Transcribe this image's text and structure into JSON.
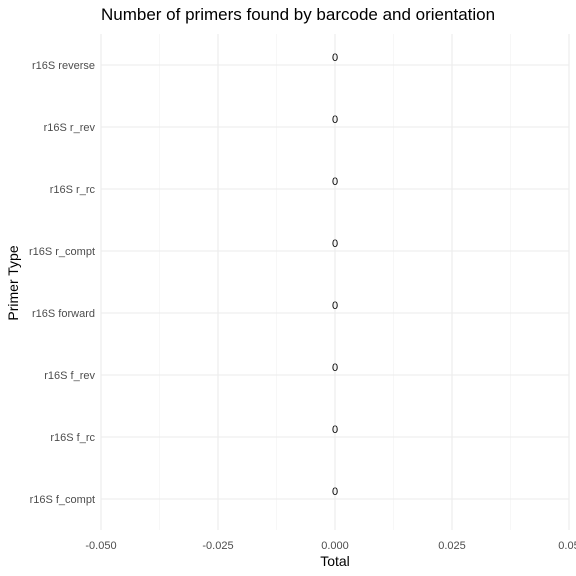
{
  "chart_data": {
    "type": "bar",
    "orientation": "horizontal",
    "title": "Number of primers found by barcode and orientation",
    "xlabel": "Total",
    "ylabel": "Primer Type",
    "categories": [
      "r16S reverse",
      "r16S r_rev",
      "r16S r_rc",
      "r16S r_compt",
      "r16S forward",
      "r16S f_rev",
      "r16S f_rc",
      "r16S f_compt"
    ],
    "values": [
      0,
      0,
      0,
      0,
      0,
      0,
      0,
      0
    ],
    "data_labels": [
      "0",
      "0",
      "0",
      "0",
      "0",
      "0",
      "0",
      "0"
    ],
    "xlim": [
      -0.05,
      0.05
    ],
    "x_ticks": [
      -0.05,
      -0.025,
      0,
      0.025,
      0.05
    ],
    "x_tick_labels": [
      "-0.050",
      "-0.025",
      "0.000",
      "0.025",
      "0.05"
    ],
    "grid": true,
    "legend": "none",
    "colors": {
      "grid": "#ebebeb",
      "text": "#000000",
      "tick": "#4d4d4d"
    }
  }
}
